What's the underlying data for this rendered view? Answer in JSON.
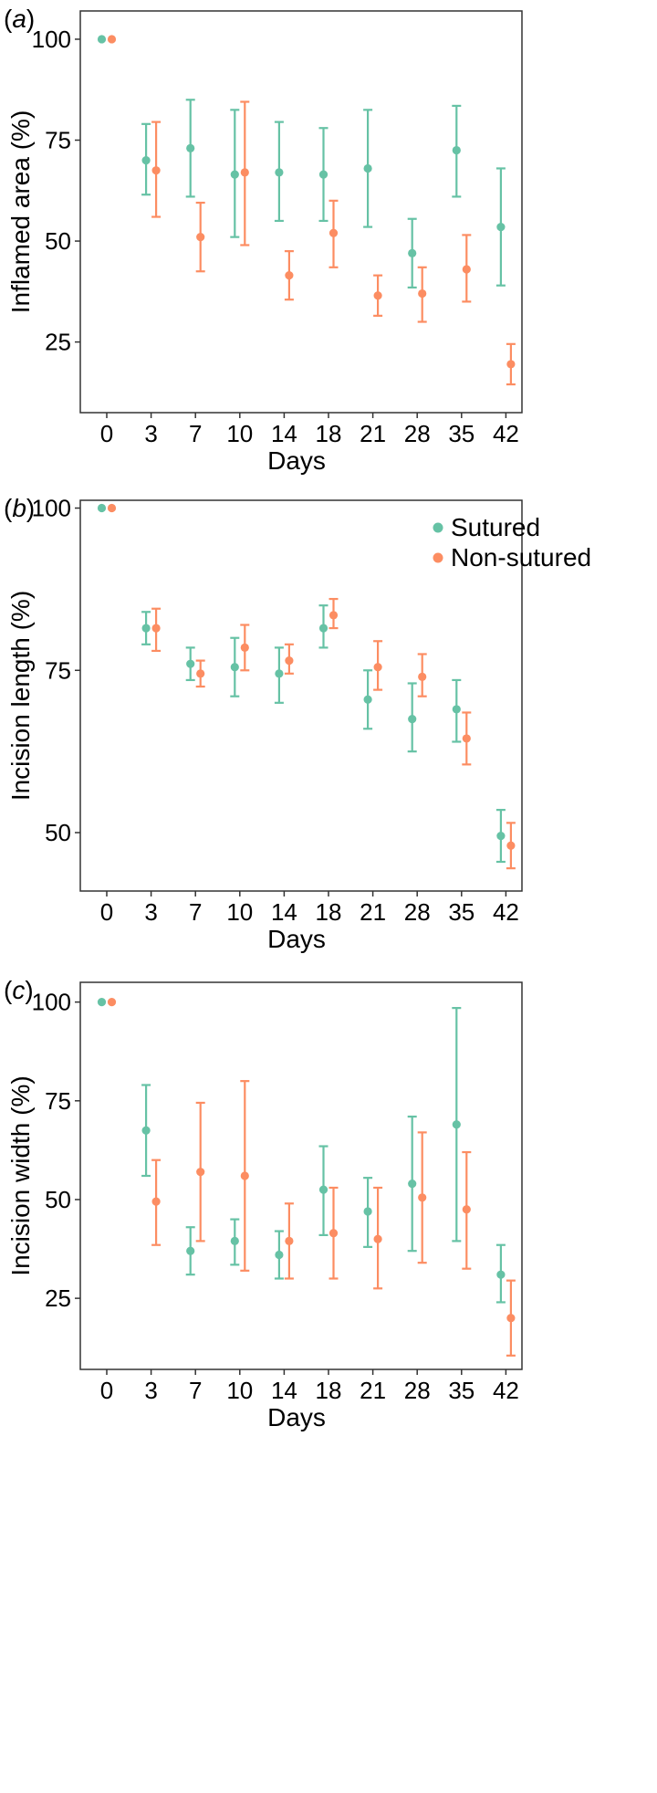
{
  "colors": {
    "sutured": "#66C2A5",
    "non_sutured": "#FC8D62"
  },
  "legend": {
    "sutured": "Sutured",
    "non_sutured": "Non-sutured"
  },
  "chart_data": [
    {
      "type": "scatter",
      "panel_label": "a",
      "xlabel": "Days",
      "ylabel": "Inflamed area (%)",
      "categories": [
        "0",
        "3",
        "7",
        "10",
        "14",
        "18",
        "21",
        "28",
        "35",
        "42"
      ],
      "yticks": [
        25,
        50,
        75,
        100
      ],
      "ylim": [
        7.5,
        107
      ],
      "error_bars": true,
      "series": [
        {
          "name": "Sutured",
          "values": [
            100,
            70,
            73,
            66.5,
            67,
            66.5,
            68,
            47,
            72.5,
            53.5
          ],
          "low": [
            100,
            61.5,
            61,
            51,
            55,
            55,
            53.5,
            38.5,
            61,
            39
          ],
          "high": [
            100,
            79,
            85,
            82.5,
            79.5,
            78,
            82.5,
            55.5,
            83.5,
            68
          ]
        },
        {
          "name": "Non-sutured",
          "values": [
            100,
            67.5,
            51,
            67,
            41.5,
            52,
            36.5,
            37,
            43,
            19.5
          ],
          "low": [
            100,
            56,
            42.5,
            49,
            35.5,
            43.5,
            31.5,
            30,
            35,
            14.5
          ],
          "high": [
            100,
            79.5,
            59.5,
            84.5,
            47.5,
            60,
            41.5,
            43.5,
            51.5,
            24.5
          ]
        }
      ]
    },
    {
      "type": "scatter",
      "panel_label": "b",
      "xlabel": "Days",
      "ylabel": "Incision length (%)",
      "categories": [
        "0",
        "3",
        "7",
        "10",
        "14",
        "18",
        "21",
        "28",
        "35",
        "42"
      ],
      "yticks": [
        50,
        75,
        100
      ],
      "ylim": [
        41,
        101.2
      ],
      "legend_position": "top-right",
      "error_bars": true,
      "series": [
        {
          "name": "Sutured",
          "values": [
            100,
            81.5,
            76,
            75.5,
            74.5,
            81.5,
            70.5,
            67.5,
            69,
            49.5
          ],
          "low": [
            100,
            79,
            73.5,
            71,
            70,
            78.5,
            66,
            62.5,
            64,
            45.5
          ],
          "high": [
            100,
            84,
            78.5,
            80,
            78.5,
            85,
            75,
            73,
            73.5,
            53.5
          ]
        },
        {
          "name": "Non-sutured",
          "values": [
            100,
            81.5,
            74.5,
            78.5,
            76.5,
            83.5,
            75.5,
            74,
            64.5,
            48
          ],
          "low": [
            100,
            78,
            72.5,
            75,
            74.5,
            81.5,
            72,
            71,
            60.5,
            44.5
          ],
          "high": [
            100,
            84.5,
            76.5,
            82,
            79,
            86,
            79.5,
            77.5,
            68.5,
            51.5
          ]
        }
      ]
    },
    {
      "type": "scatter",
      "panel_label": "c",
      "xlabel": "Days",
      "ylabel": "Incision width (%)",
      "categories": [
        "0",
        "3",
        "7",
        "10",
        "14",
        "18",
        "21",
        "28",
        "35",
        "42"
      ],
      "yticks": [
        25,
        50,
        75,
        100
      ],
      "ylim": [
        7,
        105
      ],
      "error_bars": true,
      "series": [
        {
          "name": "Sutured",
          "values": [
            100,
            67.5,
            37,
            39.5,
            36,
            52.5,
            47,
            54,
            69,
            31
          ],
          "low": [
            100,
            56,
            31,
            33.5,
            30,
            41,
            38,
            37,
            39.5,
            24
          ],
          "high": [
            100,
            79,
            43,
            45,
            42,
            63.5,
            55.5,
            71,
            98.5,
            38.5
          ]
        },
        {
          "name": "Non-sutured",
          "values": [
            100,
            49.5,
            57,
            56,
            39.5,
            41.5,
            40,
            50.5,
            47.5,
            20
          ],
          "low": [
            100,
            38.5,
            39.5,
            32,
            30,
            30,
            27.5,
            34,
            32.5,
            10.5
          ],
          "high": [
            100,
            60,
            74.5,
            80,
            49,
            53,
            53,
            67,
            62,
            29.5
          ]
        }
      ]
    }
  ]
}
